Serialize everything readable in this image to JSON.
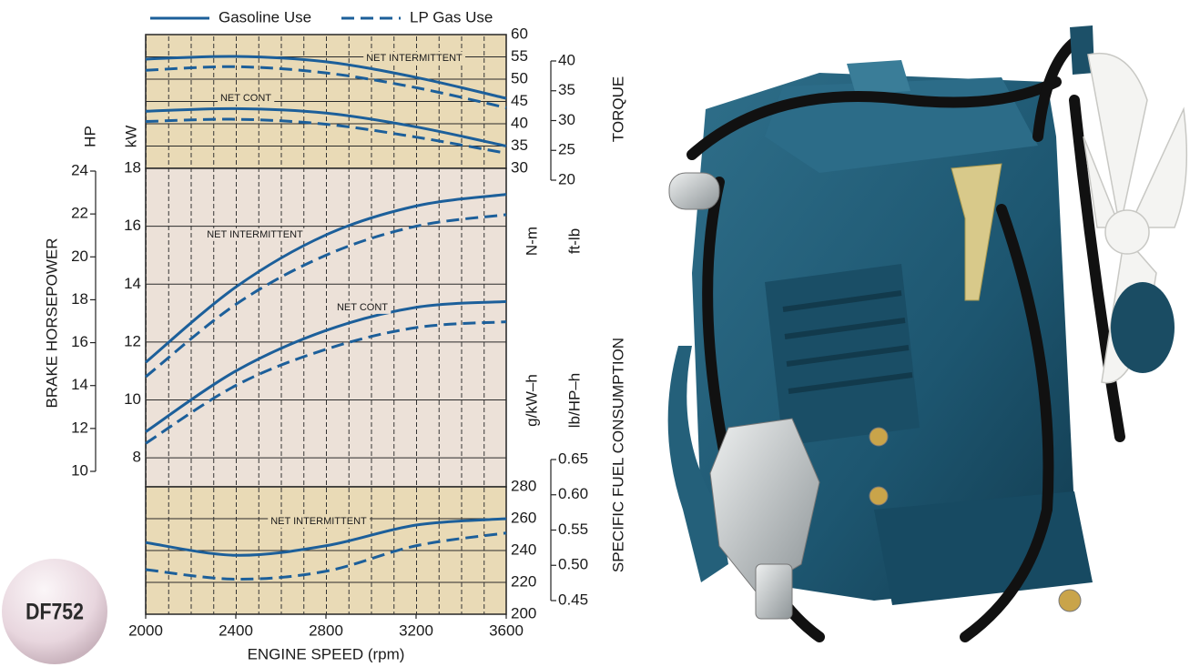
{
  "legend": [
    {
      "name": "Gasoline Use",
      "color": "#1c5f9a",
      "dash": "solid"
    },
    {
      "name": "LP Gas Use",
      "color": "#1c5f9a",
      "dash": "dashed"
    }
  ],
  "badge": "DF752",
  "chart_data": [
    {
      "type": "line",
      "axis_title": "TORQUE",
      "ylabel": "N-m",
      "y2label": "ft-lb",
      "x": [
        2000,
        2400,
        2800,
        3200,
        3600
      ],
      "ylim": [
        30,
        60
      ],
      "yticks": [
        30,
        35,
        40,
        45,
        50,
        55,
        60
      ],
      "y2lim": [
        20,
        40
      ],
      "y2ticks": [
        20,
        25,
        30,
        35,
        40
      ],
      "annotations": [
        "NET INTERMITTENT",
        "NET CONT"
      ],
      "series": [
        {
          "name": "Gasoline Use",
          "values": [
            54.5,
            55.1,
            53.9,
            50.4,
            45.7
          ]
        },
        {
          "name": "LP Gas Use",
          "values": [
            52,
            52.8,
            51.4,
            48.1,
            43.6
          ]
        },
        {
          "name": "Gasoline Use",
          "values": [
            42.8,
            43.4,
            42.4,
            39.3,
            35
          ]
        },
        {
          "name": "LP Gas Use",
          "values": [
            40.5,
            41,
            39.9,
            37,
            33.4
          ]
        }
      ]
    },
    {
      "type": "line",
      "axis_title": "BRAKE HORSEPOWER",
      "ylabel": "kW",
      "y2label": "HP",
      "x": [
        2000,
        2400,
        2800,
        3200,
        3600
      ],
      "ylim": [
        7,
        18
      ],
      "yticks": [
        8,
        10,
        12,
        14,
        16,
        18
      ],
      "y2lim": [
        10,
        24
      ],
      "y2ticks": [
        10,
        12,
        14,
        16,
        18,
        20,
        22,
        24
      ],
      "annotations": [
        "NET INTERMITTENT",
        "NET CONT"
      ],
      "series": [
        {
          "name": "Gasoline Use",
          "values": [
            11.3,
            13.9,
            15.7,
            16.7,
            17.1
          ]
        },
        {
          "name": "LP Gas Use",
          "values": [
            10.8,
            13.3,
            15,
            16,
            16.4
          ]
        },
        {
          "name": "Gasoline Use",
          "values": [
            8.9,
            11,
            12.4,
            13.2,
            13.4
          ]
        },
        {
          "name": "LP Gas Use",
          "values": [
            8.5,
            10.5,
            11.75,
            12.5,
            12.7
          ]
        }
      ]
    },
    {
      "type": "line",
      "axis_title": "SPECIFIC FUEL CONSUMPTION",
      "ylabel": "g/kW–h",
      "y2label": "lb/HP–h",
      "xlabel": "ENGINE SPEED (rpm)",
      "xlim": [
        2000,
        3600
      ],
      "xticks": [
        2000,
        2400,
        2800,
        3200,
        3600
      ],
      "x": [
        2000,
        2400,
        2800,
        3200,
        3600
      ],
      "ylim": [
        200,
        280
      ],
      "yticks": [
        200,
        220,
        240,
        260,
        280
      ],
      "y2lim": [
        0.45,
        0.65
      ],
      "y2ticks": [
        0.45,
        {
          "value": 0.5,
          "label": "0.50"
        },
        0.55,
        {
          "value": 0.6,
          "label": "0.60"
        },
        0.65
      ],
      "annotations": [
        "NET INTERMITTENT"
      ],
      "series": [
        {
          "name": "Gasoline Use",
          "values": [
            245,
            237,
            243,
            256,
            260
          ]
        },
        {
          "name": "LP Gas Use",
          "values": [
            228,
            222,
            227,
            243,
            251
          ]
        }
      ]
    }
  ]
}
